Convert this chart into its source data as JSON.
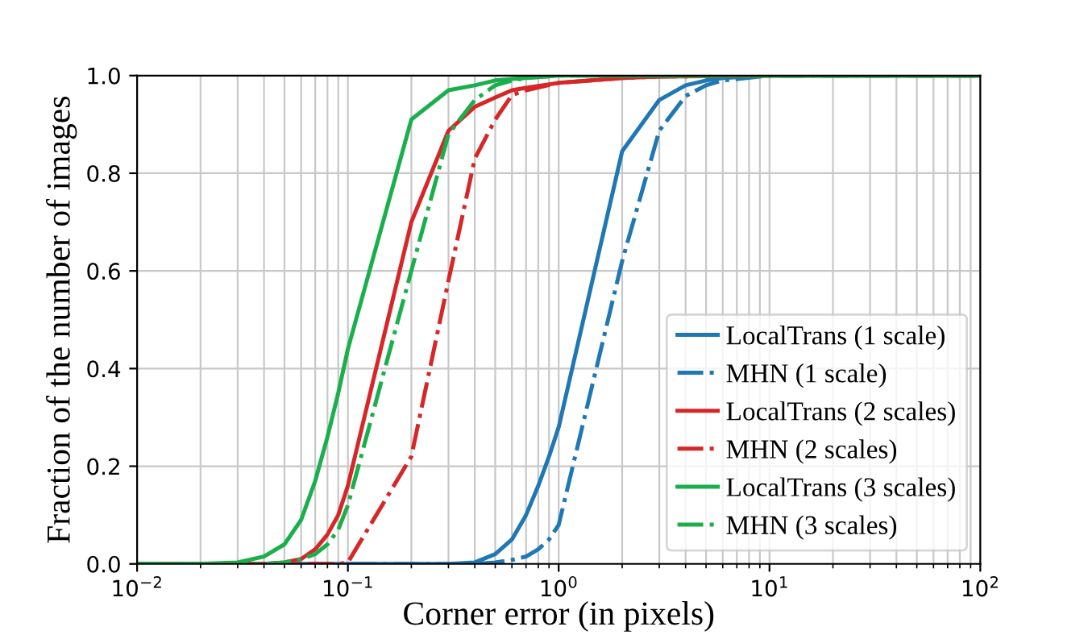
{
  "chart_data": {
    "type": "line",
    "xlabel": "Corner error (in pixels)",
    "ylabel": "Fraction of the number of images",
    "log": "x",
    "xlim": [
      0.01,
      100
    ],
    "xticks": [
      {
        "value": 0.01,
        "label": "10$^{−2}$"
      },
      {
        "value": 0.1,
        "label": "10$^{−1}$"
      },
      {
        "value": 1,
        "label": "10$^{0}$"
      },
      {
        "value": 10,
        "label": "10$^{1}$"
      },
      {
        "value": 100,
        "label": "10$^{2}$"
      }
    ],
    "ylim": [
      0,
      1
    ],
    "yticks": [
      {
        "value": 0,
        "label": "0.0"
      },
      {
        "value": 0.2,
        "label": "0.2"
      },
      {
        "value": 0.4,
        "label": "0.4"
      },
      {
        "value": 0.6,
        "label": "0.6"
      },
      {
        "value": 0.8,
        "label": "0.8"
      },
      {
        "value": 1,
        "label": "1.0"
      }
    ],
    "grid": true,
    "legend": "bottom right",
    "marker": "none",
    "series": [
      {
        "name": "LocalTrans (1 scale)",
        "color": "#1f77b4",
        "line_style": "solid",
        "x": [
          0.01,
          0.3,
          0.4,
          0.5,
          0.6,
          0.7,
          0.8,
          0.9,
          1,
          2,
          3,
          4,
          5,
          6,
          10,
          100
        ],
        "values": [
          0,
          0,
          0.003,
          0.02,
          0.05,
          0.1,
          0.16,
          0.22,
          0.28,
          0.845,
          0.95,
          0.98,
          0.99,
          0.995,
          1,
          1
        ]
      },
      {
        "name": "MHN (1 scale)",
        "color": "#1f77b4",
        "line_style": "dashdot",
        "x": [
          0.01,
          0.4,
          0.5,
          0.6,
          0.7,
          0.8,
          0.9,
          1,
          2,
          3,
          4,
          5,
          6,
          10,
          100
        ],
        "values": [
          0,
          0,
          0.003,
          0.008,
          0.015,
          0.03,
          0.05,
          0.08,
          0.62,
          0.887,
          0.958,
          0.98,
          0.99,
          1,
          1
        ]
      },
      {
        "name": "LocalTrans (2 scales)",
        "color": "#d62728",
        "line_style": "solid",
        "x": [
          0.01,
          0.04,
          0.05,
          0.06,
          0.07,
          0.08,
          0.09,
          0.1,
          0.2,
          0.3,
          0.4,
          0.5,
          0.6,
          0.7,
          1,
          2,
          3,
          10,
          100
        ],
        "values": [
          0,
          0,
          0.003,
          0.01,
          0.03,
          0.06,
          0.1,
          0.16,
          0.7,
          0.887,
          0.936,
          0.955,
          0.97,
          0.975,
          0.985,
          0.995,
          0.998,
          1,
          1
        ]
      },
      {
        "name": "MHN (2 scales)",
        "color": "#d62728",
        "line_style": "dashdot",
        "x": [
          0.01,
          0.09,
          0.1,
          0.2,
          0.3,
          0.4,
          0.5,
          0.6,
          0.7,
          1,
          2,
          3,
          10,
          100
        ],
        "values": [
          0,
          0,
          0.003,
          0.22,
          0.58,
          0.83,
          0.91,
          0.96,
          0.97,
          0.985,
          0.995,
          0.998,
          1,
          1
        ]
      },
      {
        "name": "LocalTrans (3 scales)",
        "color": "#1aaf4c",
        "line_style": "solid",
        "x": [
          0.01,
          0.02,
          0.03,
          0.04,
          0.05,
          0.06,
          0.07,
          0.08,
          0.09,
          0.1,
          0.2,
          0.3,
          0.4,
          0.5,
          0.6,
          1,
          100
        ],
        "values": [
          0,
          0,
          0.003,
          0.015,
          0.04,
          0.09,
          0.17,
          0.26,
          0.35,
          0.44,
          0.91,
          0.97,
          0.98,
          0.99,
          0.993,
          1,
          1
        ]
      },
      {
        "name": "MHN (3 scales)",
        "color": "#1aaf4c",
        "line_style": "dashdot",
        "x": [
          0.01,
          0.04,
          0.05,
          0.06,
          0.07,
          0.08,
          0.09,
          0.1,
          0.2,
          0.3,
          0.4,
          0.5,
          0.6,
          0.7,
          1,
          100
        ],
        "values": [
          0,
          0,
          0.003,
          0.01,
          0.02,
          0.04,
          0.07,
          0.12,
          0.6,
          0.88,
          0.95,
          0.98,
          0.99,
          0.995,
          1,
          1
        ]
      }
    ]
  }
}
